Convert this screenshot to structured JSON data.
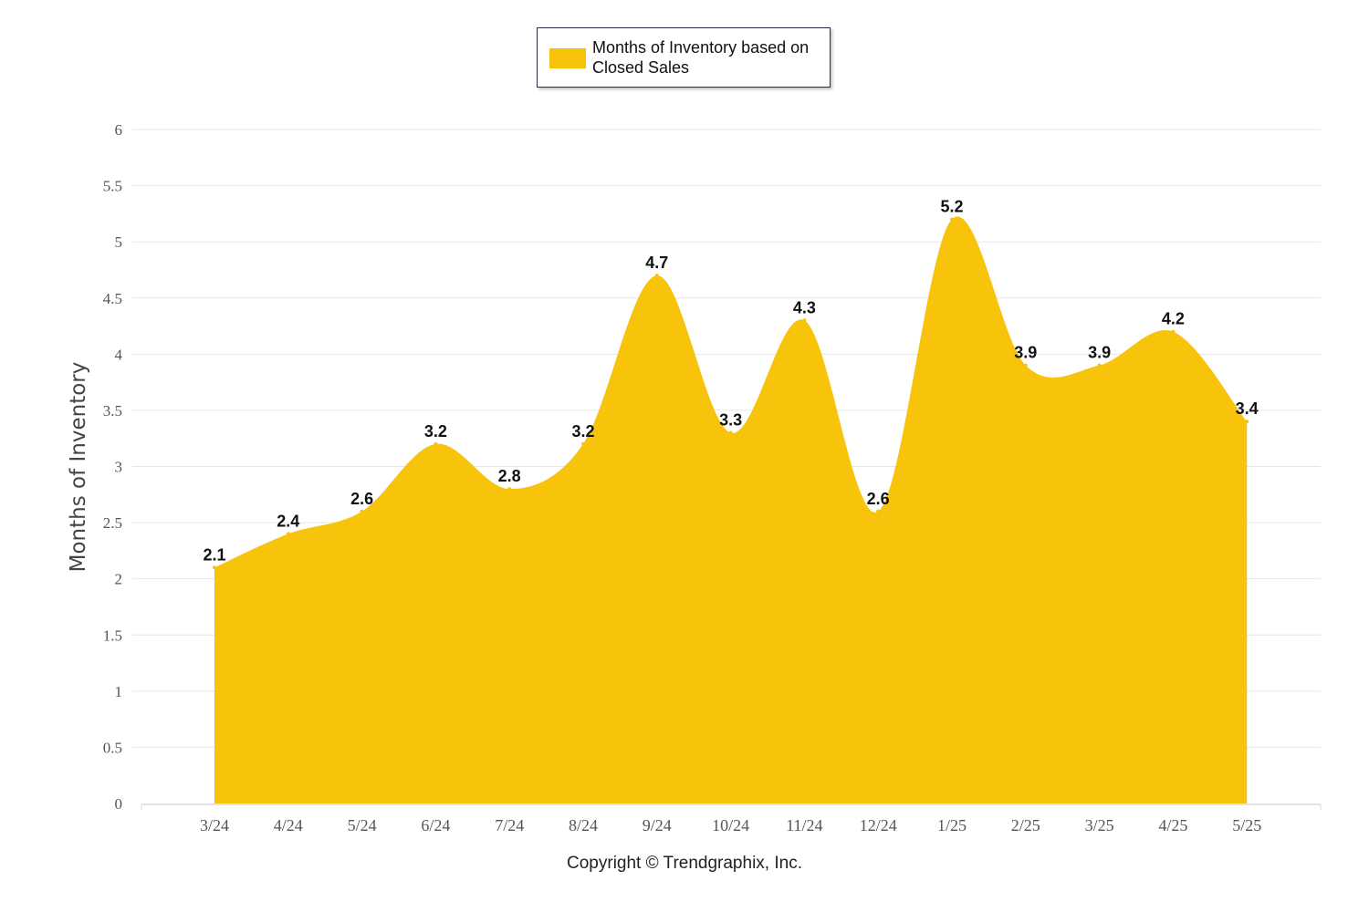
{
  "legend": {
    "label": "Months of Inventory based on Closed Sales",
    "swatch_color": "#F7C30B"
  },
  "footer": {
    "copyright": "Copyright © Trendgraphix, Inc."
  },
  "chart_data": {
    "type": "area",
    "smooth": true,
    "categories": [
      "3/24",
      "4/24",
      "5/24",
      "6/24",
      "7/24",
      "8/24",
      "9/24",
      "10/24",
      "11/24",
      "12/24",
      "1/25",
      "2/25",
      "3/25",
      "4/25",
      "5/25"
    ],
    "series": [
      {
        "name": "Months of Inventory based on Closed Sales",
        "color": "#F7C30B",
        "values": [
          2.1,
          2.4,
          2.6,
          3.2,
          2.8,
          3.2,
          4.7,
          3.3,
          4.3,
          2.6,
          5.2,
          3.9,
          3.9,
          4.2,
          3.4
        ]
      }
    ],
    "ylabel": "Months of Inventory",
    "xlabel": "",
    "ylim": [
      0,
      6
    ],
    "yticks": [
      "0",
      "0.5",
      "1",
      "1.5",
      "2",
      "2.5",
      "3",
      "3.5",
      "4",
      "4.5",
      "5",
      "5.5",
      "6"
    ],
    "grid": true,
    "legend_position": "top-center",
    "data_labels": true
  }
}
